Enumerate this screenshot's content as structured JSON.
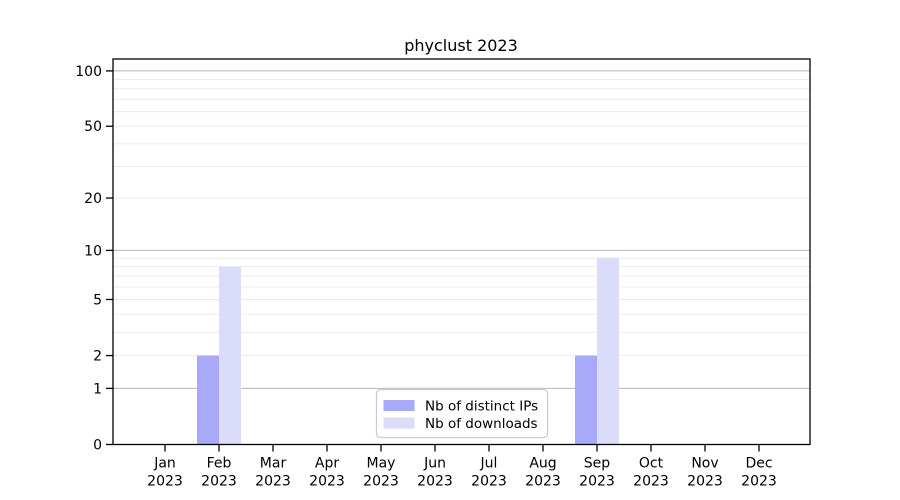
{
  "chart_data": {
    "type": "bar",
    "title": "phyclust 2023",
    "xlabel": "",
    "ylabel": "",
    "yscale": "log1p",
    "categories": [
      "Jan",
      "Feb",
      "Mar",
      "Apr",
      "May",
      "Jun",
      "Jul",
      "Aug",
      "Sep",
      "Oct",
      "Nov",
      "Dec"
    ],
    "category_year": "2023",
    "series": [
      {
        "name": "Nb of distinct IPs",
        "color": "#a9a9fa",
        "values": [
          0,
          2,
          0,
          0,
          0,
          0,
          0,
          0,
          2,
          0,
          0,
          0
        ]
      },
      {
        "name": "Nb of downloads",
        "color": "#dbdbfa",
        "values": [
          0,
          8,
          0,
          0,
          0,
          0,
          0,
          0,
          9,
          0,
          0,
          0
        ]
      }
    ],
    "yticks": [
      0,
      1,
      2,
      5,
      10,
      20,
      50,
      100
    ],
    "major_gridlines": [
      1,
      10,
      100
    ],
    "minor_gridlines": [
      2,
      3,
      4,
      5,
      6,
      7,
      8,
      9,
      20,
      30,
      40,
      50,
      60,
      70,
      80,
      90
    ],
    "ylim": [
      0,
      116
    ],
    "grid": true,
    "legend_position": "inside-bottom-center",
    "colors": {
      "major_grid": "#b6b6b6",
      "minor_grid": "#ebebeb",
      "axis": "#000000",
      "legend_border": "#cccccc",
      "background": "#ffffff"
    }
  }
}
